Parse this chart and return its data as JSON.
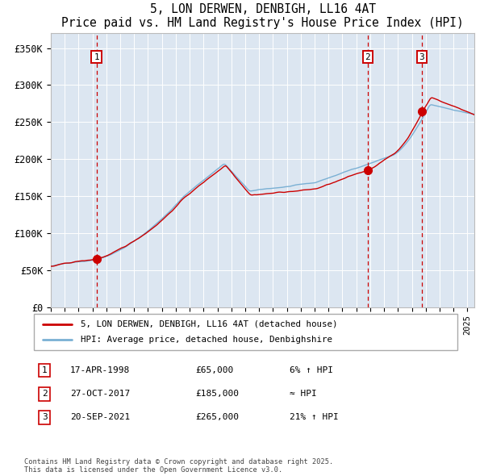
{
  "title": "5, LON DERWEN, DENBIGH, LL16 4AT",
  "subtitle": "Price paid vs. HM Land Registry's House Price Index (HPI)",
  "ylabel_values": [
    "£0",
    "£50K",
    "£100K",
    "£150K",
    "£200K",
    "£250K",
    "£300K",
    "£350K"
  ],
  "yticks": [
    0,
    50000,
    100000,
    150000,
    200000,
    250000,
    300000,
    350000
  ],
  "ylim": [
    0,
    370000
  ],
  "xlim_start": 1995.0,
  "xlim_end": 2025.5,
  "background_color": "#dce6f1",
  "red_line_color": "#cc0000",
  "blue_line_color": "#7ab0d4",
  "vline_color": "#cc0000",
  "sale1_date": "17-APR-1998",
  "sale1_price": 65000,
  "sale1_year": 1998.29,
  "sale1_label": "6% ↑ HPI",
  "sale2_date": "27-OCT-2017",
  "sale2_price": 185000,
  "sale2_year": 2017.82,
  "sale2_label": "≈ HPI",
  "sale3_date": "20-SEP-2021",
  "sale3_price": 265000,
  "sale3_year": 2021.72,
  "sale3_label": "21% ↑ HPI",
  "legend1": "5, LON DERWEN, DENBIGH, LL16 4AT (detached house)",
  "legend2": "HPI: Average price, detached house, Denbighshire",
  "footnote": "Contains HM Land Registry data © Crown copyright and database right 2025.\nThis data is licensed under the Open Government Licence v3.0.",
  "marker_color": "#cc0000",
  "marker_size": 7
}
